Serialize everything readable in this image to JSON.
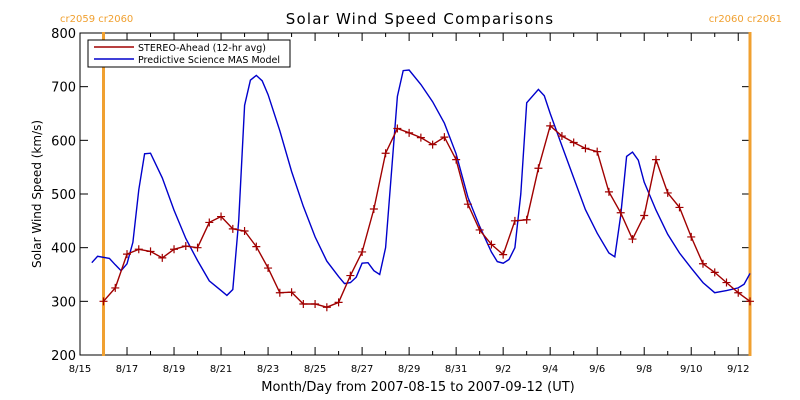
{
  "chart_data": {
    "type": "line",
    "title": "Solar Wind Speed Comparisons",
    "xlabel": "Month/Day from 2007-08-15 to 2007-09-12 (UT)",
    "ylabel": "Solar Wind Speed (km/s)",
    "xlim": [
      "2007-08-15T00:00",
      "2007-09-12T12:00"
    ],
    "ylim": [
      200,
      800
    ],
    "x_ticks": [
      "8/15",
      "8/17",
      "8/19",
      "8/21",
      "8/23",
      "8/25",
      "8/27",
      "8/29",
      "8/31",
      "9/2",
      "9/4",
      "9/6",
      "9/8",
      "9/10",
      "9/12"
    ],
    "y_ticks": [
      200,
      300,
      400,
      500,
      600,
      700,
      800
    ],
    "legend_position": "top-left",
    "grid": false,
    "carrington_markers": [
      {
        "x": "2007-08-16T00:00",
        "label": "cr2059 cr2060",
        "side": "left",
        "color": "#f0a030"
      },
      {
        "x": "2007-09-12T12:00",
        "label": "cr2060 cr2061",
        "side": "right",
        "color": "#f0a030"
      }
    ],
    "series": [
      {
        "name": "STEREO-Ahead (12-hr avg)",
        "color": "#a00000",
        "marker": "plus",
        "points": [
          [
            "2007-08-16T00:00",
            300
          ],
          [
            "2007-08-16T12:00",
            325
          ],
          [
            "2007-08-17T00:00",
            388
          ],
          [
            "2007-08-17T12:00",
            397
          ],
          [
            "2007-08-18T00:00",
            393
          ],
          [
            "2007-08-18T12:00",
            381
          ],
          [
            "2007-08-19T00:00",
            397
          ],
          [
            "2007-08-19T12:00",
            403
          ],
          [
            "2007-08-20T00:00",
            400
          ],
          [
            "2007-08-20T12:00",
            447
          ],
          [
            "2007-08-21T00:00",
            458
          ],
          [
            "2007-08-21T12:00",
            435
          ],
          [
            "2007-08-22T00:00",
            431
          ],
          [
            "2007-08-22T12:00",
            402
          ],
          [
            "2007-08-23T00:00",
            362
          ],
          [
            "2007-08-23T12:00",
            316
          ],
          [
            "2007-08-24T00:00",
            317
          ],
          [
            "2007-08-24T12:00",
            295
          ],
          [
            "2007-08-25T00:00",
            295
          ],
          [
            "2007-08-25T12:00",
            289
          ],
          [
            "2007-08-26T00:00",
            298
          ],
          [
            "2007-08-26T12:00",
            348
          ],
          [
            "2007-08-27T00:00",
            392
          ],
          [
            "2007-08-27T12:00",
            472
          ],
          [
            "2007-08-28T00:00",
            576
          ],
          [
            "2007-08-28T12:00",
            622
          ],
          [
            "2007-08-29T00:00",
            614
          ],
          [
            "2007-08-29T12:00",
            605
          ],
          [
            "2007-08-30T00:00",
            592
          ],
          [
            "2007-08-30T12:00",
            606
          ],
          [
            "2007-08-31T00:00",
            564
          ],
          [
            "2007-08-31T12:00",
            481
          ],
          [
            "2007-09-01T00:00",
            433
          ],
          [
            "2007-09-01T12:00",
            406
          ],
          [
            "2007-09-02T00:00",
            387
          ],
          [
            "2007-09-02T12:00",
            450
          ],
          [
            "2007-09-03T00:00",
            452
          ],
          [
            "2007-09-03T12:00",
            548
          ],
          [
            "2007-09-04T00:00",
            627
          ],
          [
            "2007-09-04T12:00",
            608
          ],
          [
            "2007-09-05T00:00",
            596
          ],
          [
            "2007-09-05T12:00",
            585
          ],
          [
            "2007-09-06T00:00",
            579
          ],
          [
            "2007-09-06T12:00",
            504
          ],
          [
            "2007-09-07T00:00",
            465
          ],
          [
            "2007-09-07T12:00",
            416
          ],
          [
            "2007-09-08T00:00",
            460
          ],
          [
            "2007-09-08T12:00",
            564
          ],
          [
            "2007-09-09T00:00",
            502
          ],
          [
            "2007-09-09T12:00",
            475
          ],
          [
            "2007-09-10T00:00",
            420
          ],
          [
            "2007-09-10T12:00",
            370
          ],
          [
            "2007-09-11T00:00",
            354
          ],
          [
            "2007-09-11T12:00",
            335
          ],
          [
            "2007-09-12T00:00",
            316
          ],
          [
            "2007-09-12T12:00",
            300
          ]
        ]
      },
      {
        "name": "Predictive Science MAS Model",
        "color": "#0000cc",
        "marker": "none",
        "points": [
          [
            "2007-08-15T12:00",
            372
          ],
          [
            "2007-08-15T18:00",
            384
          ],
          [
            "2007-08-16T06:00",
            380
          ],
          [
            "2007-08-16T12:00",
            368
          ],
          [
            "2007-08-16T18:00",
            357
          ],
          [
            "2007-08-17T00:00",
            370
          ],
          [
            "2007-08-17T06:00",
            410
          ],
          [
            "2007-08-17T12:00",
            508
          ],
          [
            "2007-08-17T18:00",
            575
          ],
          [
            "2007-08-18T00:00",
            576
          ],
          [
            "2007-08-18T12:00",
            530
          ],
          [
            "2007-08-19T00:00",
            470
          ],
          [
            "2007-08-19T12:00",
            417
          ],
          [
            "2007-08-20T00:00",
            376
          ],
          [
            "2007-08-20T12:00",
            338
          ],
          [
            "2007-08-21T00:00",
            320
          ],
          [
            "2007-08-21T06:00",
            311
          ],
          [
            "2007-08-21T12:00",
            322
          ],
          [
            "2007-08-21T18:00",
            450
          ],
          [
            "2007-08-22T00:00",
            665
          ],
          [
            "2007-08-22T06:00",
            712
          ],
          [
            "2007-08-22T12:00",
            721
          ],
          [
            "2007-08-22T18:00",
            711
          ],
          [
            "2007-08-23T00:00",
            685
          ],
          [
            "2007-08-23T12:00",
            618
          ],
          [
            "2007-08-24T00:00",
            542
          ],
          [
            "2007-08-24T12:00",
            477
          ],
          [
            "2007-08-25T00:00",
            420
          ],
          [
            "2007-08-25T12:00",
            375
          ],
          [
            "2007-08-26T00:00",
            346
          ],
          [
            "2007-08-26T06:00",
            333
          ],
          [
            "2007-08-26T12:00",
            335
          ],
          [
            "2007-08-26T18:00",
            345
          ],
          [
            "2007-08-27T00:00",
            371
          ],
          [
            "2007-08-27T06:00",
            372
          ],
          [
            "2007-08-27T12:00",
            357
          ],
          [
            "2007-08-27T18:00",
            350
          ],
          [
            "2007-08-28T00:00",
            400
          ],
          [
            "2007-08-28T12:00",
            682
          ],
          [
            "2007-08-28T18:00",
            730
          ],
          [
            "2007-08-29T00:00",
            731
          ],
          [
            "2007-08-29T12:00",
            704
          ],
          [
            "2007-08-30T00:00",
            672
          ],
          [
            "2007-08-30T12:00",
            632
          ],
          [
            "2007-08-31T00:00",
            575
          ],
          [
            "2007-08-31T12:00",
            494
          ],
          [
            "2007-09-01T00:00",
            440
          ],
          [
            "2007-09-01T12:00",
            392
          ],
          [
            "2007-09-01T18:00",
            374
          ],
          [
            "2007-09-02T00:00",
            371
          ],
          [
            "2007-09-02T06:00",
            378
          ],
          [
            "2007-09-02T12:00",
            400
          ],
          [
            "2007-09-02T18:00",
            500
          ],
          [
            "2007-09-03T00:00",
            670
          ],
          [
            "2007-09-03T12:00",
            695
          ],
          [
            "2007-09-03T18:00",
            683
          ],
          [
            "2007-09-04T00:00",
            650
          ],
          [
            "2007-09-04T12:00",
            590
          ],
          [
            "2007-09-05T00:00",
            530
          ],
          [
            "2007-09-05T12:00",
            471
          ],
          [
            "2007-09-06T00:00",
            427
          ],
          [
            "2007-09-06T12:00",
            390
          ],
          [
            "2007-09-06T18:00",
            383
          ],
          [
            "2007-09-07T00:00",
            460
          ],
          [
            "2007-09-07T06:00",
            570
          ],
          [
            "2007-09-07T12:00",
            578
          ],
          [
            "2007-09-07T18:00",
            563
          ],
          [
            "2007-09-08T00:00",
            522
          ],
          [
            "2007-09-08T12:00",
            470
          ],
          [
            "2007-09-09T00:00",
            425
          ],
          [
            "2007-09-09T12:00",
            390
          ],
          [
            "2007-09-10T00:00",
            362
          ],
          [
            "2007-09-10T12:00",
            335
          ],
          [
            "2007-09-11T00:00",
            316
          ],
          [
            "2007-09-11T12:00",
            320
          ],
          [
            "2007-09-12T00:00",
            325
          ],
          [
            "2007-09-12T06:00",
            332
          ],
          [
            "2007-09-12T12:00",
            352
          ]
        ]
      }
    ]
  }
}
